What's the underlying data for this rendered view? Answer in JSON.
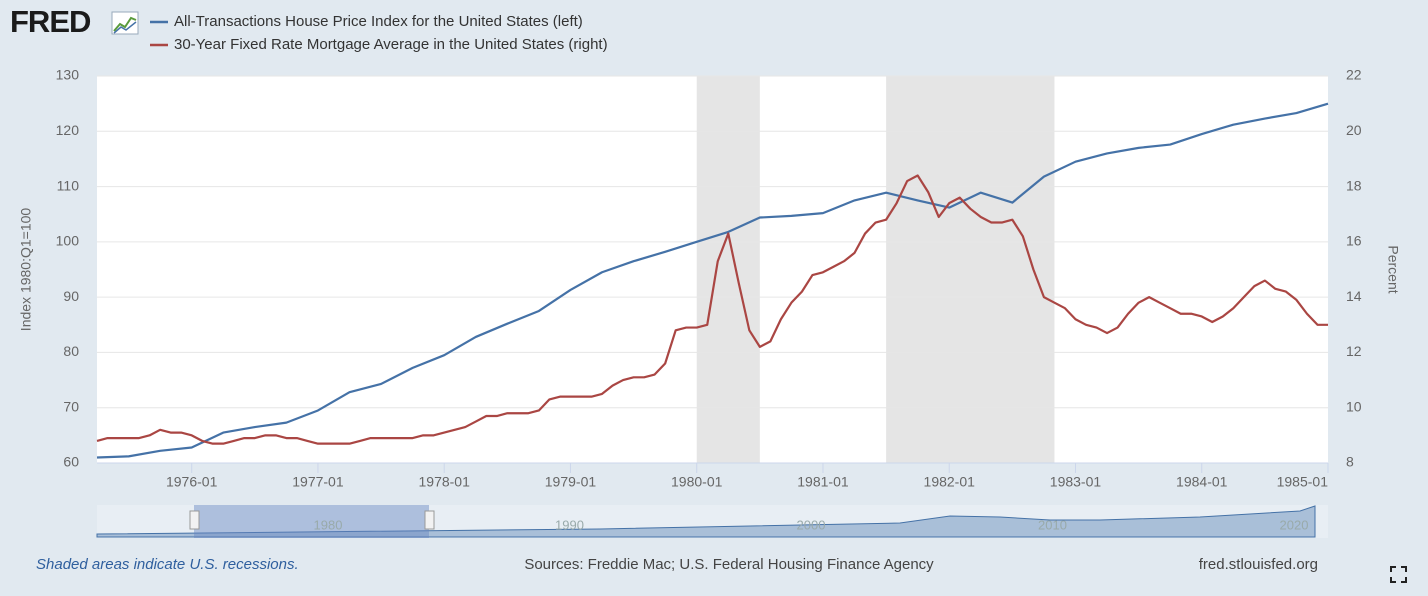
{
  "logo": "FRED",
  "chart_data": {
    "type": "line",
    "ylabel": "Index 1980:Q1=100",
    "y2label": "Percent",
    "xlim": [
      "1975-04",
      "1985-01"
    ],
    "xticks": [
      "1976-01",
      "1977-01",
      "1978-01",
      "1979-01",
      "1980-01",
      "1981-01",
      "1982-01",
      "1983-01",
      "1984-01",
      "1985-01"
    ],
    "ylim": [
      60,
      130
    ],
    "yticks": [
      60,
      70,
      80,
      90,
      100,
      110,
      120,
      130
    ],
    "y2lim": [
      8,
      22
    ],
    "y2ticks": [
      8,
      10,
      12,
      14,
      16,
      18,
      20,
      22
    ],
    "grid": true,
    "shaded": [
      {
        "start": "1980-01",
        "end": "1980-07"
      },
      {
        "start": "1981-07",
        "end": "1982-11"
      }
    ],
    "series": [
      {
        "name": "All-Transactions House Price Index for the United States (left)",
        "color": "#4572a7",
        "axis": "y",
        "x": [
          "1975-04",
          "1975-07",
          "1975-10",
          "1976-01",
          "1976-04",
          "1976-07",
          "1976-10",
          "1977-01",
          "1977-04",
          "1977-07",
          "1977-10",
          "1978-01",
          "1978-04",
          "1978-07",
          "1978-10",
          "1979-01",
          "1979-04",
          "1979-07",
          "1979-10",
          "1980-01",
          "1980-04",
          "1980-07",
          "1980-10",
          "1981-01",
          "1981-04",
          "1981-07",
          "1981-10",
          "1982-01",
          "1982-04",
          "1982-07",
          "1982-10",
          "1983-01",
          "1983-04",
          "1983-07",
          "1983-10",
          "1984-01",
          "1984-04",
          "1984-07",
          "1984-10",
          "1985-01"
        ],
        "values": [
          61.0,
          61.2,
          62.2,
          62.8,
          65.5,
          66.5,
          67.3,
          69.5,
          72.8,
          74.3,
          77.2,
          79.5,
          82.8,
          85.2,
          87.5,
          91.3,
          94.5,
          96.5,
          98.2,
          100.0,
          101.8,
          104.4,
          104.7,
          105.2,
          107.5,
          108.9,
          107.5,
          106.2,
          108.9,
          107.1,
          111.8,
          114.5,
          116.0,
          117.0,
          117.6,
          119.5,
          121.2,
          122.3,
          123.3,
          125.0
        ]
      },
      {
        "name": "30-Year Fixed Rate Mortgage Average in the United States (right)",
        "color": "#aa4643",
        "axis": "y2",
        "x": [
          "1975-04",
          "1975-05",
          "1975-06",
          "1975-07",
          "1975-08",
          "1975-09",
          "1975-10",
          "1975-11",
          "1975-12",
          "1976-01",
          "1976-02",
          "1976-03",
          "1976-04",
          "1976-05",
          "1976-06",
          "1976-07",
          "1976-08",
          "1976-09",
          "1976-10",
          "1976-11",
          "1976-12",
          "1977-01",
          "1977-02",
          "1977-03",
          "1977-04",
          "1977-05",
          "1977-06",
          "1977-07",
          "1977-08",
          "1977-09",
          "1977-10",
          "1977-11",
          "1977-12",
          "1978-01",
          "1978-02",
          "1978-03",
          "1978-04",
          "1978-05",
          "1978-06",
          "1978-07",
          "1978-08",
          "1978-09",
          "1978-10",
          "1978-11",
          "1978-12",
          "1979-01",
          "1979-02",
          "1979-03",
          "1979-04",
          "1979-05",
          "1979-06",
          "1979-07",
          "1979-08",
          "1979-09",
          "1979-10",
          "1979-11",
          "1979-12",
          "1980-01",
          "1980-02",
          "1980-03",
          "1980-04",
          "1980-05",
          "1980-06",
          "1980-07",
          "1980-08",
          "1980-09",
          "1980-10",
          "1980-11",
          "1980-12",
          "1981-01",
          "1981-02",
          "1981-03",
          "1981-04",
          "1981-05",
          "1981-06",
          "1981-07",
          "1981-08",
          "1981-09",
          "1981-10",
          "1981-11",
          "1981-12",
          "1982-01",
          "1982-02",
          "1982-03",
          "1982-04",
          "1982-05",
          "1982-06",
          "1982-07",
          "1982-08",
          "1982-09",
          "1982-10",
          "1982-11",
          "1982-12",
          "1983-01",
          "1983-02",
          "1983-03",
          "1983-04",
          "1983-05",
          "1983-06",
          "1983-07",
          "1983-08",
          "1983-09",
          "1983-10",
          "1983-11",
          "1983-12",
          "1984-01",
          "1984-02",
          "1984-03",
          "1984-04",
          "1984-05",
          "1984-06",
          "1984-07",
          "1984-08",
          "1984-09",
          "1984-10",
          "1984-11",
          "1984-12",
          "1985-01"
        ],
        "values": [
          8.8,
          8.9,
          8.9,
          8.9,
          8.9,
          9.0,
          9.2,
          9.1,
          9.1,
          9.0,
          8.8,
          8.7,
          8.7,
          8.8,
          8.9,
          8.9,
          9.0,
          9.0,
          8.9,
          8.9,
          8.8,
          8.7,
          8.7,
          8.7,
          8.7,
          8.8,
          8.9,
          8.9,
          8.9,
          8.9,
          8.9,
          9.0,
          9.0,
          9.1,
          9.2,
          9.3,
          9.5,
          9.7,
          9.7,
          9.8,
          9.8,
          9.8,
          9.9,
          10.3,
          10.4,
          10.4,
          10.4,
          10.4,
          10.5,
          10.8,
          11.0,
          11.1,
          11.1,
          11.2,
          11.6,
          12.8,
          12.9,
          12.9,
          13.0,
          15.3,
          16.3,
          14.5,
          12.8,
          12.2,
          12.4,
          13.2,
          13.8,
          14.2,
          14.8,
          14.9,
          15.1,
          15.3,
          15.6,
          16.3,
          16.7,
          16.8,
          17.4,
          18.2,
          18.4,
          17.8,
          16.9,
          17.4,
          17.6,
          17.2,
          16.9,
          16.7,
          16.7,
          16.8,
          16.2,
          15.0,
          14.0,
          13.8,
          13.6,
          13.2,
          13.0,
          12.9,
          12.7,
          12.9,
          13.4,
          13.8,
          14.0,
          13.8,
          13.6,
          13.4,
          13.4,
          13.3,
          13.1,
          13.3,
          13.6,
          14.0,
          14.4,
          14.6,
          14.3,
          14.2,
          13.9,
          13.4,
          13.0,
          13.0
        ]
      }
    ],
    "navigator": {
      "labels": [
        "1980",
        "1990",
        "2000",
        "2010",
        "2020"
      ]
    },
    "note": "Shaded areas indicate U.S. recessions.",
    "source": "Sources: Freddie Mac; U.S. Federal Housing Finance Agency",
    "site": "fred.stlouisfed.org"
  }
}
